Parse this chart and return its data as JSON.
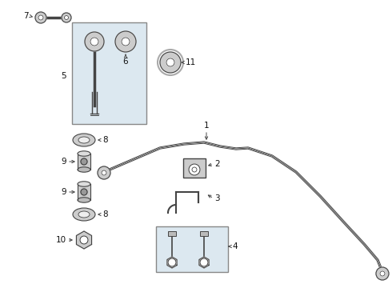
{
  "bg_color": "#ffffff",
  "box_fill": "#dce8f0",
  "line_color": "#444444",
  "label_color": "#111111",
  "lw_bar": 1.4,
  "lw_part": 1.0,
  "fontsize": 7.5,
  "figsize": [
    4.9,
    3.6
  ],
  "dpi": 100,
  "xlim": [
    0,
    490
  ],
  "ylim": [
    0,
    360
  ]
}
